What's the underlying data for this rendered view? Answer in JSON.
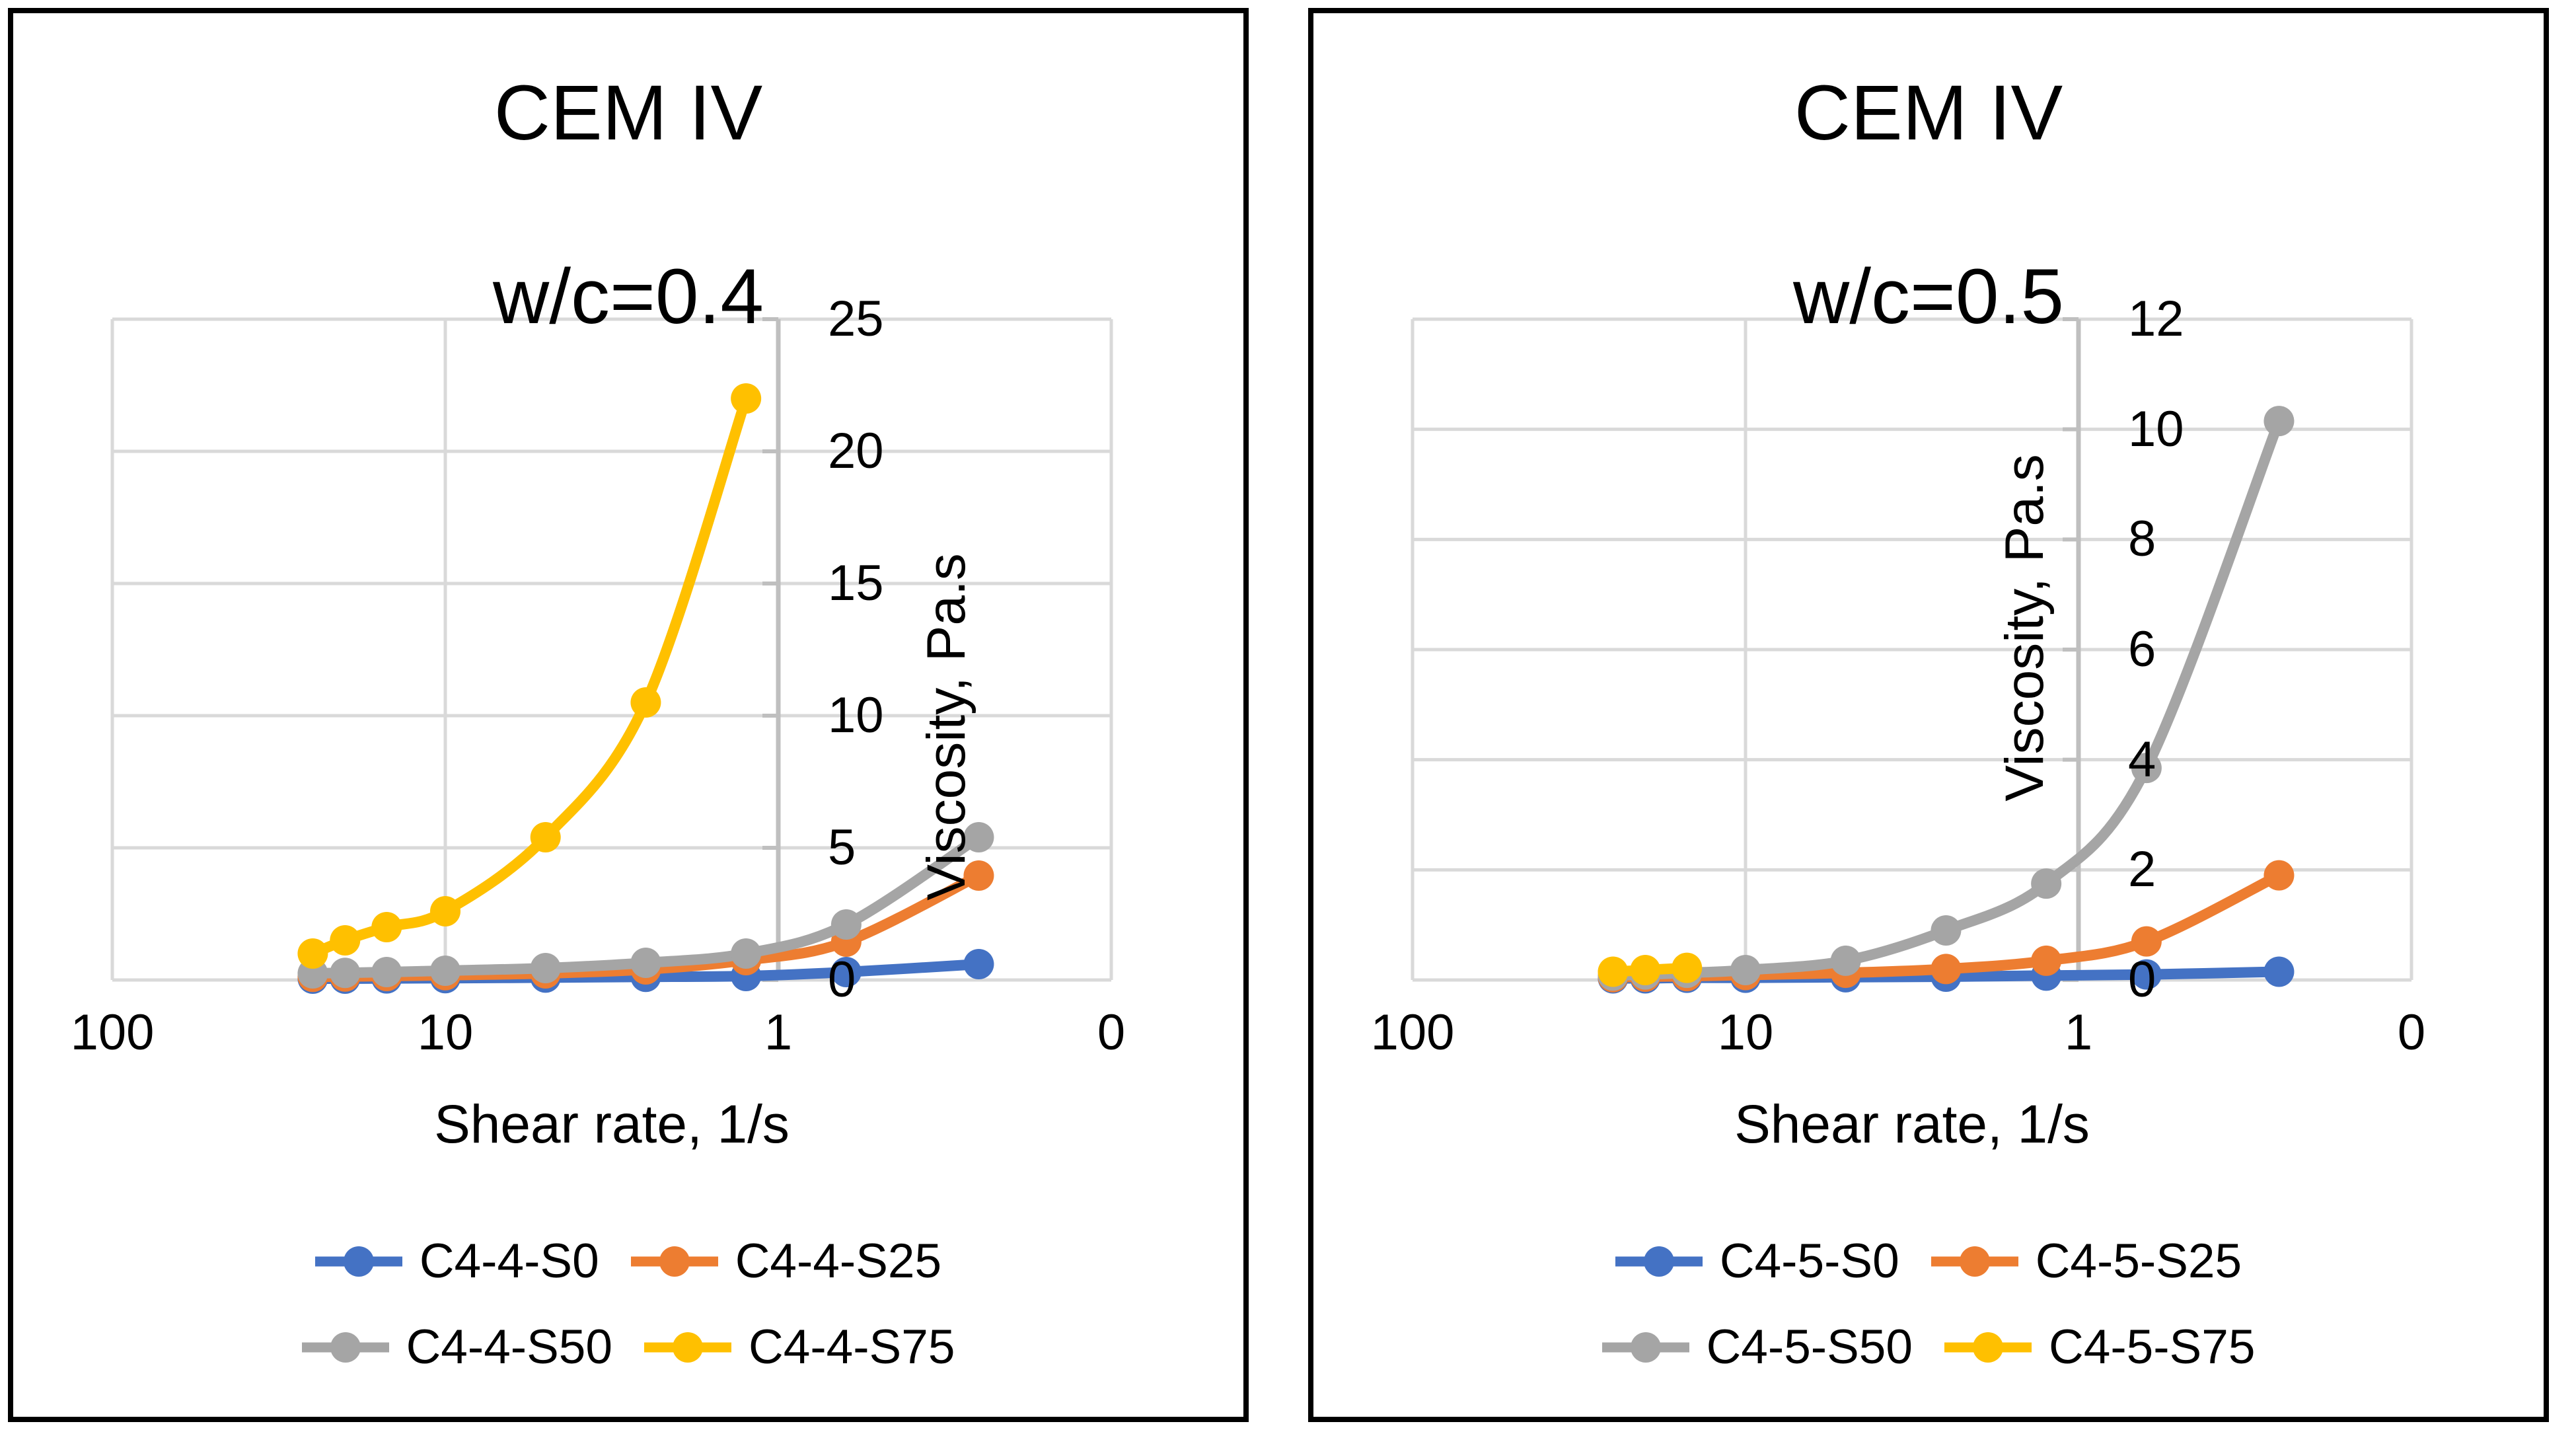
{
  "colors": {
    "background": "#FFFFFF",
    "panel_border": "#000000",
    "gridline": "#D9D9D9",
    "axis_line": "#BFBFBF",
    "text": "#000000",
    "series_blue": "#4472C4",
    "series_orange": "#ED7D31",
    "series_gray": "#A5A5A5",
    "series_yellow": "#FFC000"
  },
  "chart_data": [
    {
      "type": "line",
      "title": "CEM IV",
      "subtitle": "w/c=0.4",
      "xlabel": "Shear rate, 1/s",
      "ylabel": "Viscosity, Pa.s",
      "x_scale": "log10-reversed",
      "xlim": [
        100,
        0.1
      ],
      "x_ticks": [
        100,
        10,
        1,
        0.1
      ],
      "x_tick_labels": [
        "100",
        "10",
        "1",
        "0"
      ],
      "ylim": [
        0,
        25
      ],
      "y_ticks": [
        25,
        20,
        15,
        10,
        5,
        0
      ],
      "y_tick_labels": [
        "25",
        "20",
        "15",
        "10",
        "5",
        "0"
      ],
      "grid": true,
      "legend_position": "bottom",
      "x": [
        25,
        20,
        15,
        10,
        5,
        2.5,
        1.25,
        0.625,
        0.25
      ],
      "series": [
        {
          "name": "C4-4-S0",
          "color": "#4472C4",
          "values": [
            0.05,
            0.05,
            0.06,
            0.07,
            0.09,
            0.12,
            0.15,
            0.3,
            0.6
          ]
        },
        {
          "name": "C4-4-S25",
          "color": "#ED7D31",
          "values": [
            0.12,
            0.13,
            0.15,
            0.18,
            0.25,
            0.4,
            0.75,
            1.45,
            3.95
          ]
        },
        {
          "name": "C4-4-S50",
          "color": "#A5A5A5",
          "values": [
            0.25,
            0.27,
            0.3,
            0.35,
            0.45,
            0.65,
            1.0,
            2.1,
            5.4
          ]
        },
        {
          "name": "C4-4-S75",
          "color": "#FFC000",
          "x": [
            25,
            20,
            15,
            10,
            5,
            2.5,
            1.25
          ],
          "values": [
            1.0,
            1.5,
            2.0,
            2.6,
            5.4,
            10.5,
            22.0
          ]
        }
      ]
    },
    {
      "type": "line",
      "title": "CEM IV",
      "subtitle": "w/c=0.5",
      "xlabel": "Shear rate, 1/s",
      "ylabel": "Viscosity, Pa.s",
      "x_scale": "log10-reversed",
      "xlim": [
        100,
        0.1
      ],
      "x_ticks": [
        100,
        10,
        1,
        0.1
      ],
      "x_tick_labels": [
        "100",
        "10",
        "1",
        "0"
      ],
      "ylim": [
        0,
        12
      ],
      "y_ticks": [
        12,
        10,
        8,
        6,
        4,
        2,
        0
      ],
      "y_tick_labels": [
        "12",
        "10",
        "8",
        "6",
        "4",
        "2",
        "0"
      ],
      "grid": true,
      "legend_position": "bottom",
      "x": [
        25,
        20,
        15,
        10,
        5,
        2.5,
        1.25,
        0.625,
        0.25
      ],
      "series": [
        {
          "name": "C4-5-S0",
          "color": "#4472C4",
          "values": [
            0.03,
            0.03,
            0.04,
            0.04,
            0.05,
            0.06,
            0.08,
            0.1,
            0.15
          ]
        },
        {
          "name": "C4-5-S25",
          "color": "#ED7D31",
          "values": [
            0.05,
            0.06,
            0.07,
            0.09,
            0.13,
            0.2,
            0.35,
            0.7,
            1.9
          ]
        },
        {
          "name": "C4-5-S50",
          "color": "#A5A5A5",
          "values": [
            0.08,
            0.1,
            0.13,
            0.18,
            0.35,
            0.9,
            1.75,
            3.85,
            10.15
          ]
        },
        {
          "name": "C4-5-S75",
          "color": "#FFC000",
          "x": [
            25,
            20,
            15
          ],
          "values": [
            0.15,
            0.18,
            0.22
          ]
        }
      ]
    }
  ]
}
